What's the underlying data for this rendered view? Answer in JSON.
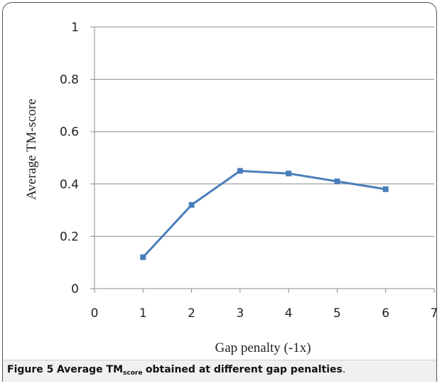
{
  "chart_data": {
    "type": "line",
    "x": [
      1,
      2,
      3,
      4,
      5,
      6
    ],
    "series": [
      {
        "values": [
          0.12,
          0.32,
          0.45,
          0.44,
          0.41,
          0.38
        ]
      }
    ],
    "xlabel": "Gap penalty (-1x)",
    "ylabel": "Average TM-score",
    "xlim": [
      0,
      7
    ],
    "ylim": [
      0,
      1
    ],
    "x_ticks": [
      "0",
      "1",
      "2",
      "3",
      "4",
      "5",
      "6",
      "7"
    ],
    "y_ticks": [
      "0",
      "0.2",
      "0.4",
      "0.6",
      "0.8",
      "1"
    ],
    "grid": "horizontal",
    "colors": {
      "line": "#4a7ebb",
      "grid": "#8c8c8c",
      "axis": "#8c8c8c"
    }
  },
  "caption": {
    "label": "Figure 5",
    "text_before": "Average TM",
    "subscript": "score",
    "text_after": "obtained at different gap penalties",
    "end": "."
  }
}
